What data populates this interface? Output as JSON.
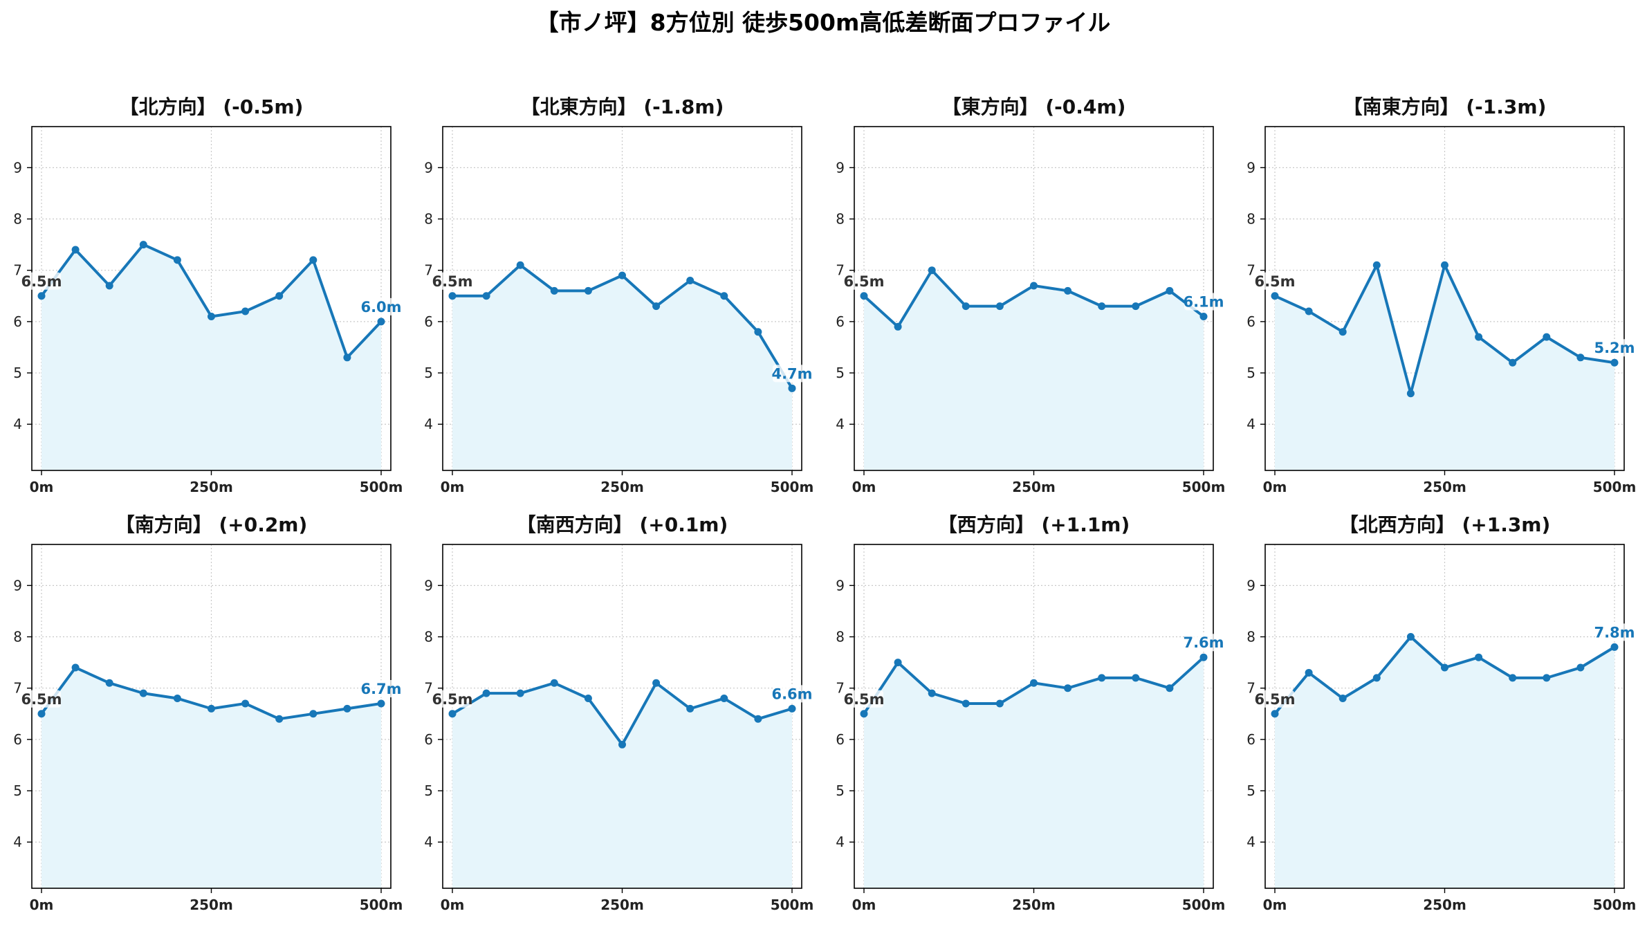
{
  "title": "【市ノ坪】8方位別 徒歩500m高低差断面プロファイル",
  "colors": {
    "line": "#1777B8",
    "fill": "#E6F5FB",
    "grid": "#C8C8C8",
    "start_label": "#333333",
    "end_label": "#1777B8"
  },
  "chart_data": [
    {
      "type": "area",
      "title": "【北方向】 (-0.5m)",
      "xlim": [
        0,
        500
      ],
      "ylim": [
        3.1,
        9.8
      ],
      "xticks": [
        0,
        250,
        500
      ],
      "xtick_labels": [
        "0m",
        "250m",
        "500m"
      ],
      "yticks": [
        4,
        5,
        6,
        7,
        8,
        9
      ],
      "ytick_labels": [
        "4",
        "5",
        "6",
        "7",
        "8",
        "9"
      ],
      "grid": true,
      "x": [
        0,
        50,
        100,
        150,
        200,
        250,
        300,
        350,
        400,
        450,
        500
      ],
      "y": [
        6.5,
        7.4,
        6.7,
        7.5,
        7.2,
        6.1,
        6.2,
        6.5,
        7.2,
        5.3,
        6.0
      ],
      "start_label": "6.5m",
      "end_label": "6.0m"
    },
    {
      "type": "area",
      "title": "【北東方向】 (-1.8m)",
      "xlim": [
        0,
        500
      ],
      "ylim": [
        3.1,
        9.8
      ],
      "xticks": [
        0,
        250,
        500
      ],
      "xtick_labels": [
        "0m",
        "250m",
        "500m"
      ],
      "yticks": [
        4,
        5,
        6,
        7,
        8,
        9
      ],
      "ytick_labels": [
        "4",
        "5",
        "6",
        "7",
        "8",
        "9"
      ],
      "grid": true,
      "x": [
        0,
        50,
        100,
        150,
        200,
        250,
        300,
        350,
        400,
        450,
        500
      ],
      "y": [
        6.5,
        6.5,
        7.1,
        6.6,
        6.6,
        6.9,
        6.3,
        6.8,
        6.5,
        5.8,
        4.7
      ],
      "start_label": "6.5m",
      "end_label": "4.7m"
    },
    {
      "type": "area",
      "title": "【東方向】 (-0.4m)",
      "xlim": [
        0,
        500
      ],
      "ylim": [
        3.1,
        9.8
      ],
      "xticks": [
        0,
        250,
        500
      ],
      "xtick_labels": [
        "0m",
        "250m",
        "500m"
      ],
      "yticks": [
        4,
        5,
        6,
        7,
        8,
        9
      ],
      "ytick_labels": [
        "4",
        "5",
        "6",
        "7",
        "8",
        "9"
      ],
      "grid": true,
      "x": [
        0,
        50,
        100,
        150,
        200,
        250,
        300,
        350,
        400,
        450,
        500
      ],
      "y": [
        6.5,
        5.9,
        7.0,
        6.3,
        6.3,
        6.7,
        6.6,
        6.3,
        6.3,
        6.6,
        6.1
      ],
      "start_label": "6.5m",
      "end_label": "6.1m"
    },
    {
      "type": "area",
      "title": "【南東方向】 (-1.3m)",
      "xlim": [
        0,
        500
      ],
      "ylim": [
        3.1,
        9.8
      ],
      "xticks": [
        0,
        250,
        500
      ],
      "xtick_labels": [
        "0m",
        "250m",
        "500m"
      ],
      "yticks": [
        4,
        5,
        6,
        7,
        8,
        9
      ],
      "ytick_labels": [
        "4",
        "5",
        "6",
        "7",
        "8",
        "9"
      ],
      "grid": true,
      "x": [
        0,
        50,
        100,
        150,
        200,
        250,
        300,
        350,
        400,
        450,
        500
      ],
      "y": [
        6.5,
        6.2,
        5.8,
        7.1,
        4.6,
        7.1,
        5.7,
        5.2,
        5.7,
        5.3,
        5.2
      ],
      "start_label": "6.5m",
      "end_label": "5.2m"
    },
    {
      "type": "area",
      "title": "【南方向】 (+0.2m)",
      "xlim": [
        0,
        500
      ],
      "ylim": [
        3.1,
        9.8
      ],
      "xticks": [
        0,
        250,
        500
      ],
      "xtick_labels": [
        "0m",
        "250m",
        "500m"
      ],
      "yticks": [
        4,
        5,
        6,
        7,
        8,
        9
      ],
      "ytick_labels": [
        "4",
        "5",
        "6",
        "7",
        "8",
        "9"
      ],
      "grid": true,
      "x": [
        0,
        50,
        100,
        150,
        200,
        250,
        300,
        350,
        400,
        450,
        500
      ],
      "y": [
        6.5,
        7.4,
        7.1,
        6.9,
        6.8,
        6.6,
        6.7,
        6.4,
        6.5,
        6.6,
        6.7
      ],
      "start_label": "6.5m",
      "end_label": "6.7m"
    },
    {
      "type": "area",
      "title": "【南西方向】 (+0.1m)",
      "xlim": [
        0,
        500
      ],
      "ylim": [
        3.1,
        9.8
      ],
      "xticks": [
        0,
        250,
        500
      ],
      "xtick_labels": [
        "0m",
        "250m",
        "500m"
      ],
      "yticks": [
        4,
        5,
        6,
        7,
        8,
        9
      ],
      "ytick_labels": [
        "4",
        "5",
        "6",
        "7",
        "8",
        "9"
      ],
      "grid": true,
      "x": [
        0,
        50,
        100,
        150,
        200,
        250,
        300,
        350,
        400,
        450,
        500
      ],
      "y": [
        6.5,
        6.9,
        6.9,
        7.1,
        6.8,
        5.9,
        7.1,
        6.6,
        6.8,
        6.4,
        6.6
      ],
      "start_label": "6.5m",
      "end_label": "6.6m"
    },
    {
      "type": "area",
      "title": "【西方向】 (+1.1m)",
      "xlim": [
        0,
        500
      ],
      "ylim": [
        3.1,
        9.8
      ],
      "xticks": [
        0,
        250,
        500
      ],
      "xtick_labels": [
        "0m",
        "250m",
        "500m"
      ],
      "yticks": [
        4,
        5,
        6,
        7,
        8,
        9
      ],
      "ytick_labels": [
        "4",
        "5",
        "6",
        "7",
        "8",
        "9"
      ],
      "grid": true,
      "x": [
        0,
        50,
        100,
        150,
        200,
        250,
        300,
        350,
        400,
        450,
        500
      ],
      "y": [
        6.5,
        7.5,
        6.9,
        6.7,
        6.7,
        7.1,
        7.0,
        7.2,
        7.2,
        7.0,
        7.6
      ],
      "start_label": "6.5m",
      "end_label": "7.6m"
    },
    {
      "type": "area",
      "title": "【北西方向】 (+1.3m)",
      "xlim": [
        0,
        500
      ],
      "ylim": [
        3.1,
        9.8
      ],
      "xticks": [
        0,
        250,
        500
      ],
      "xtick_labels": [
        "0m",
        "250m",
        "500m"
      ],
      "yticks": [
        4,
        5,
        6,
        7,
        8,
        9
      ],
      "ytick_labels": [
        "4",
        "5",
        "6",
        "7",
        "8",
        "9"
      ],
      "grid": true,
      "x": [
        0,
        50,
        100,
        150,
        200,
        250,
        300,
        350,
        400,
        450,
        500
      ],
      "y": [
        6.5,
        7.3,
        6.8,
        7.2,
        8.0,
        7.4,
        7.6,
        7.2,
        7.2,
        7.4,
        7.8
      ],
      "start_label": "6.5m",
      "end_label": "7.8m"
    }
  ]
}
